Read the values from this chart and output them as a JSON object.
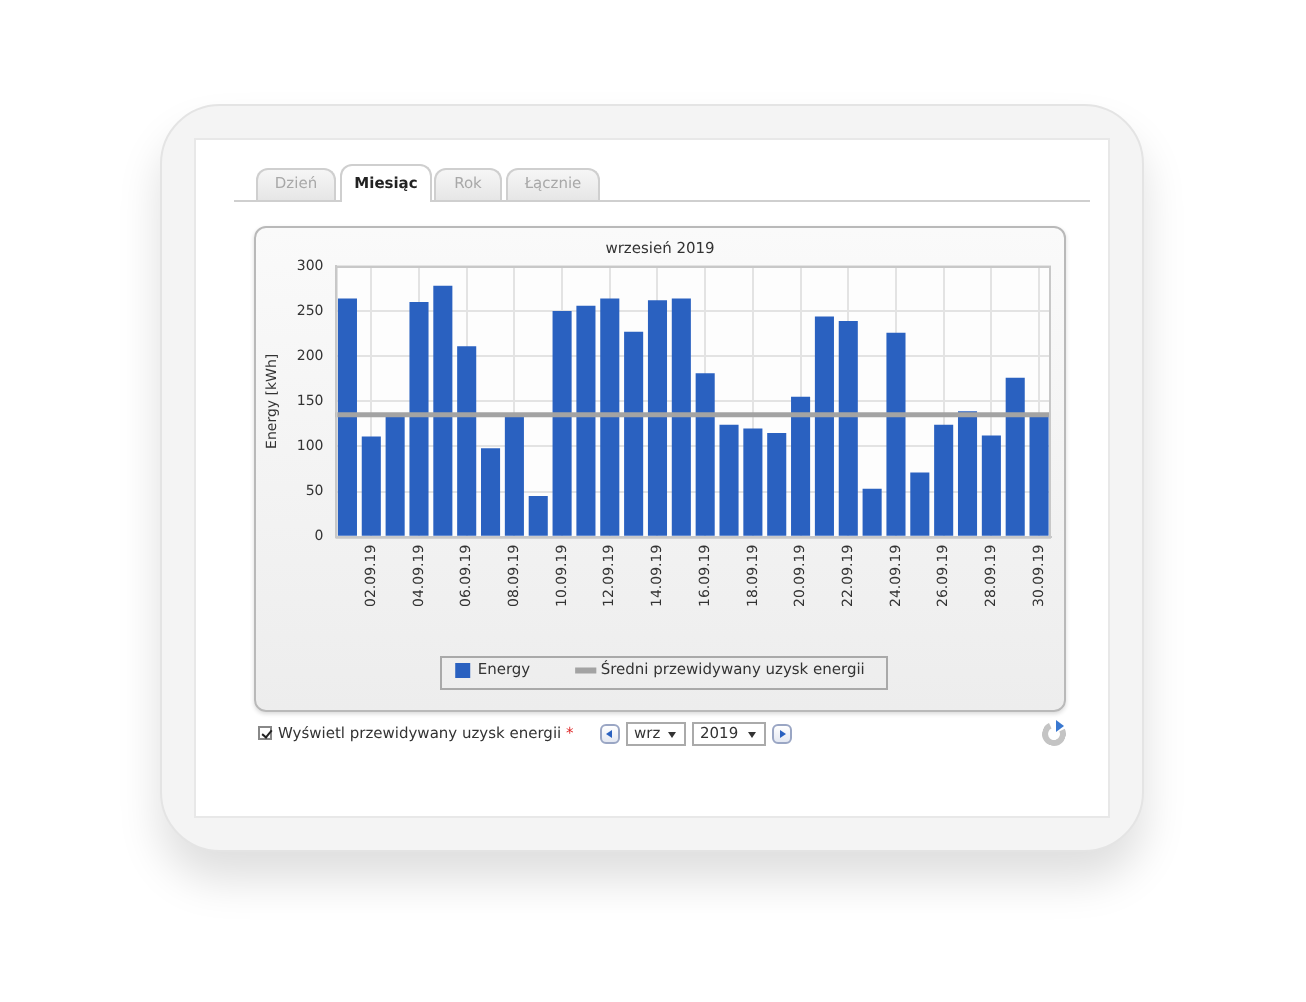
{
  "chart_data": {
    "type": "bar",
    "title": "wrzesień 2019",
    "ylabel": "Energy [kWh]",
    "categories": [
      null,
      "02.09.19",
      null,
      "04.09.19",
      null,
      "06.09.19",
      null,
      "08.09.19",
      null,
      "10.09.19",
      null,
      "12.09.19",
      null,
      "14.09.19",
      null,
      "16.09.19",
      null,
      "18.09.19",
      null,
      "20.09.19",
      null,
      "22.09.19",
      null,
      "24.09.19",
      null,
      "26.09.19",
      null,
      "28.09.19",
      null,
      "30.09.19"
    ],
    "series": [
      {
        "name": "Energy",
        "color": "#2a61c0",
        "values": [
          264,
          111,
          135,
          260,
          278,
          211,
          98,
          133,
          45,
          250,
          256,
          264,
          227,
          262,
          264,
          181,
          124,
          120,
          115,
          155,
          244,
          239,
          53,
          226,
          71,
          124,
          139,
          112,
          176,
          133
        ]
      }
    ],
    "ylim": [
      0,
      300
    ],
    "yticks": [
      0,
      50,
      100,
      150,
      200,
      250,
      300
    ],
    "grid": true,
    "legend": "bottom",
    "ref_lines": [
      {
        "axis": "y",
        "value": 135,
        "label": "Średni przewidywany uzysk energii",
        "color": "#a3a3a3"
      }
    ],
    "annotations": [
      "Dzień",
      "Miesiąc",
      "Rok",
      "Łącznie",
      "Wyświetl przewidywany uzysk energii *",
      "wrz",
      "2019"
    ]
  }
}
